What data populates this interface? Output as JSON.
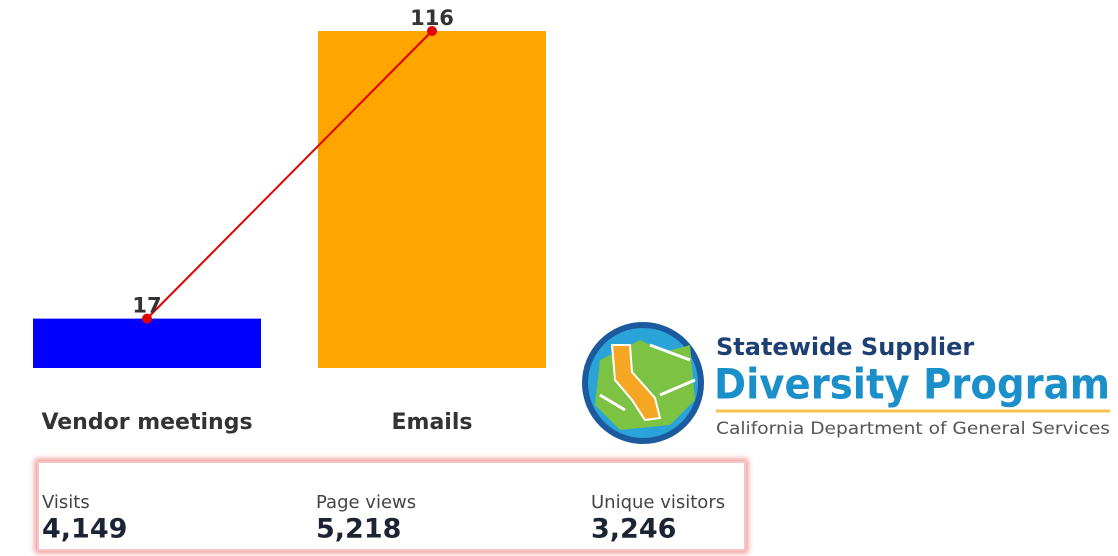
{
  "chart_data": {
    "type": "bar_line",
    "categories": [
      "Vendor meetings",
      "Emails"
    ],
    "values": [
      17,
      116
    ],
    "colors": [
      "#0000ff",
      "#ffa500"
    ],
    "line_color": "#e00000"
  },
  "logo": {
    "line1": "Statewide Supplier",
    "line2": "Diversity Program",
    "line3": "California Department of General Services"
  },
  "stats": [
    {
      "label": "Visits",
      "value": "4,149"
    },
    {
      "label": "Page views",
      "value": "5,218"
    },
    {
      "label": "Unique visitors",
      "value": "3,246"
    }
  ]
}
